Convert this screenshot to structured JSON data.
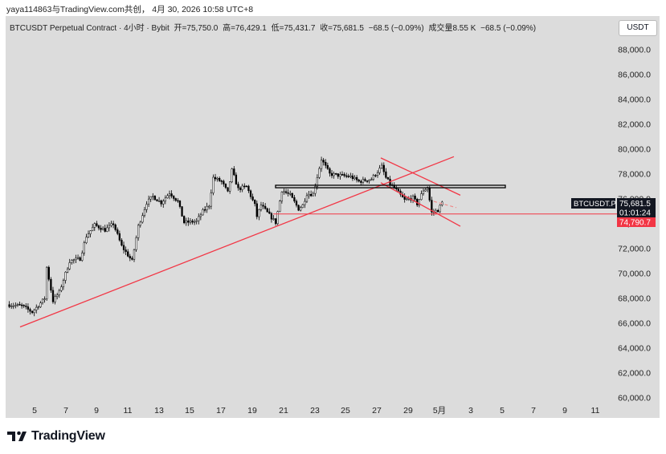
{
  "header": {
    "watermark": "yaya114863与TradingView.com共创， 4月 30, 2026 10:58 UTC+8"
  },
  "legend": {
    "symbol": "BTCUSDT Perpetual Contract · 4小时 · Bybit",
    "open": "开=75,750.0",
    "high": "高=76,429.1",
    "low": "低=75,431.7",
    "close": "收=75,681.5",
    "change": "−68.5 (−0.09%)",
    "volume": "成交量8.55 K",
    "vol_change": "−68.5 (−0.09%)"
  },
  "currency_button": "USDT",
  "price_tags": {
    "symbol_tag": "BTCUSDT.P",
    "last_price": "75,681.5",
    "countdown": "01:01:24",
    "line_price": "74,790.7"
  },
  "logo": {
    "text": "TradingView"
  },
  "colors": {
    "up": "#ffffff",
    "down": "#000000",
    "trendline": "#f23645",
    "panel": "#dcdcdc"
  },
  "chart_data": {
    "type": "candlestick",
    "interval": "4h",
    "y_axis": {
      "ylim": [
        59400,
        89500
      ],
      "ticks": [
        60000,
        62000,
        64000,
        66000,
        68000,
        70000,
        72000,
        74000,
        76000,
        78000,
        80000,
        82000,
        84000,
        86000,
        88000
      ],
      "tick_labels": [
        "60,000.0",
        "62,000.0",
        "64,000.0",
        "66,000.0",
        "68,000.0",
        "70,000.0",
        "72,000.0",
        "74,000.0",
        "76,000.0",
        "78,000.0",
        "80,000.0",
        "82,000.0",
        "84,000.0",
        "86,000.0",
        "88,000.0"
      ]
    },
    "x_axis": {
      "tick_labels": [
        "5",
        "7",
        "9",
        "11",
        "13",
        "15",
        "17",
        "19",
        "21",
        "23",
        "25",
        "27",
        "29",
        "5月",
        "3",
        "5",
        "7",
        "9",
        "11"
      ]
    },
    "trend_waypoints": [
      [
        0,
        67500
      ],
      [
        7,
        67400
      ],
      [
        12,
        66900
      ],
      [
        18,
        68000
      ],
      [
        19,
        70500
      ],
      [
        22,
        67800
      ],
      [
        25,
        68500
      ],
      [
        30,
        71000
      ],
      [
        35,
        71200
      ],
      [
        38,
        73000
      ],
      [
        42,
        73900
      ],
      [
        47,
        73500
      ],
      [
        51,
        74000
      ],
      [
        55,
        72200
      ],
      [
        60,
        71000
      ],
      [
        63,
        73800
      ],
      [
        67,
        75700
      ],
      [
        70,
        76200
      ],
      [
        74,
        75700
      ],
      [
        78,
        76500
      ],
      [
        82,
        75800
      ],
      [
        85,
        74100
      ],
      [
        91,
        74200
      ],
      [
        94,
        75000
      ],
      [
        97,
        75500
      ],
      [
        99,
        77700
      ],
      [
        103,
        77400
      ],
      [
        106,
        76500
      ],
      [
        108,
        78300
      ],
      [
        111,
        76800
      ],
      [
        115,
        77000
      ],
      [
        119,
        75500
      ],
      [
        120,
        74600
      ],
      [
        122,
        75500
      ],
      [
        126,
        74700
      ],
      [
        129,
        74100
      ],
      [
        132,
        76700
      ],
      [
        136,
        76300
      ],
      [
        140,
        75200
      ],
      [
        142,
        75500
      ],
      [
        144,
        76400
      ],
      [
        147,
        76400
      ],
      [
        151,
        79200
      ],
      [
        155,
        78000
      ],
      [
        159,
        77900
      ],
      [
        165,
        77800
      ],
      [
        169,
        77400
      ],
      [
        175,
        77600
      ],
      [
        180,
        78600
      ],
      [
        182,
        77700
      ],
      [
        184,
        77200
      ],
      [
        187,
        76700
      ],
      [
        191,
        75900
      ],
      [
        195,
        76100
      ],
      [
        197,
        75600
      ],
      [
        200,
        76700
      ],
      [
        202,
        76900
      ],
      [
        204,
        74900
      ],
      [
        207,
        75100
      ],
      [
        209,
        75700
      ]
    ],
    "annotations": {
      "ascending_trendline": [
        [
          66000,
          65700
        ],
        [
          79800,
          79400
        ]
      ],
      "channel_upper": [
        [
          78950,
          79300
        ],
        [
          75600,
          76300
        ]
      ],
      "channel_lower": [
        [
          77900,
          77300
        ],
        [
          73600,
          73800
        ]
      ],
      "rectangle_zone": [
        77100,
        76900
      ],
      "horizontal_line": 74790.7,
      "projection": [
        75800,
        75300
      ]
    }
  }
}
